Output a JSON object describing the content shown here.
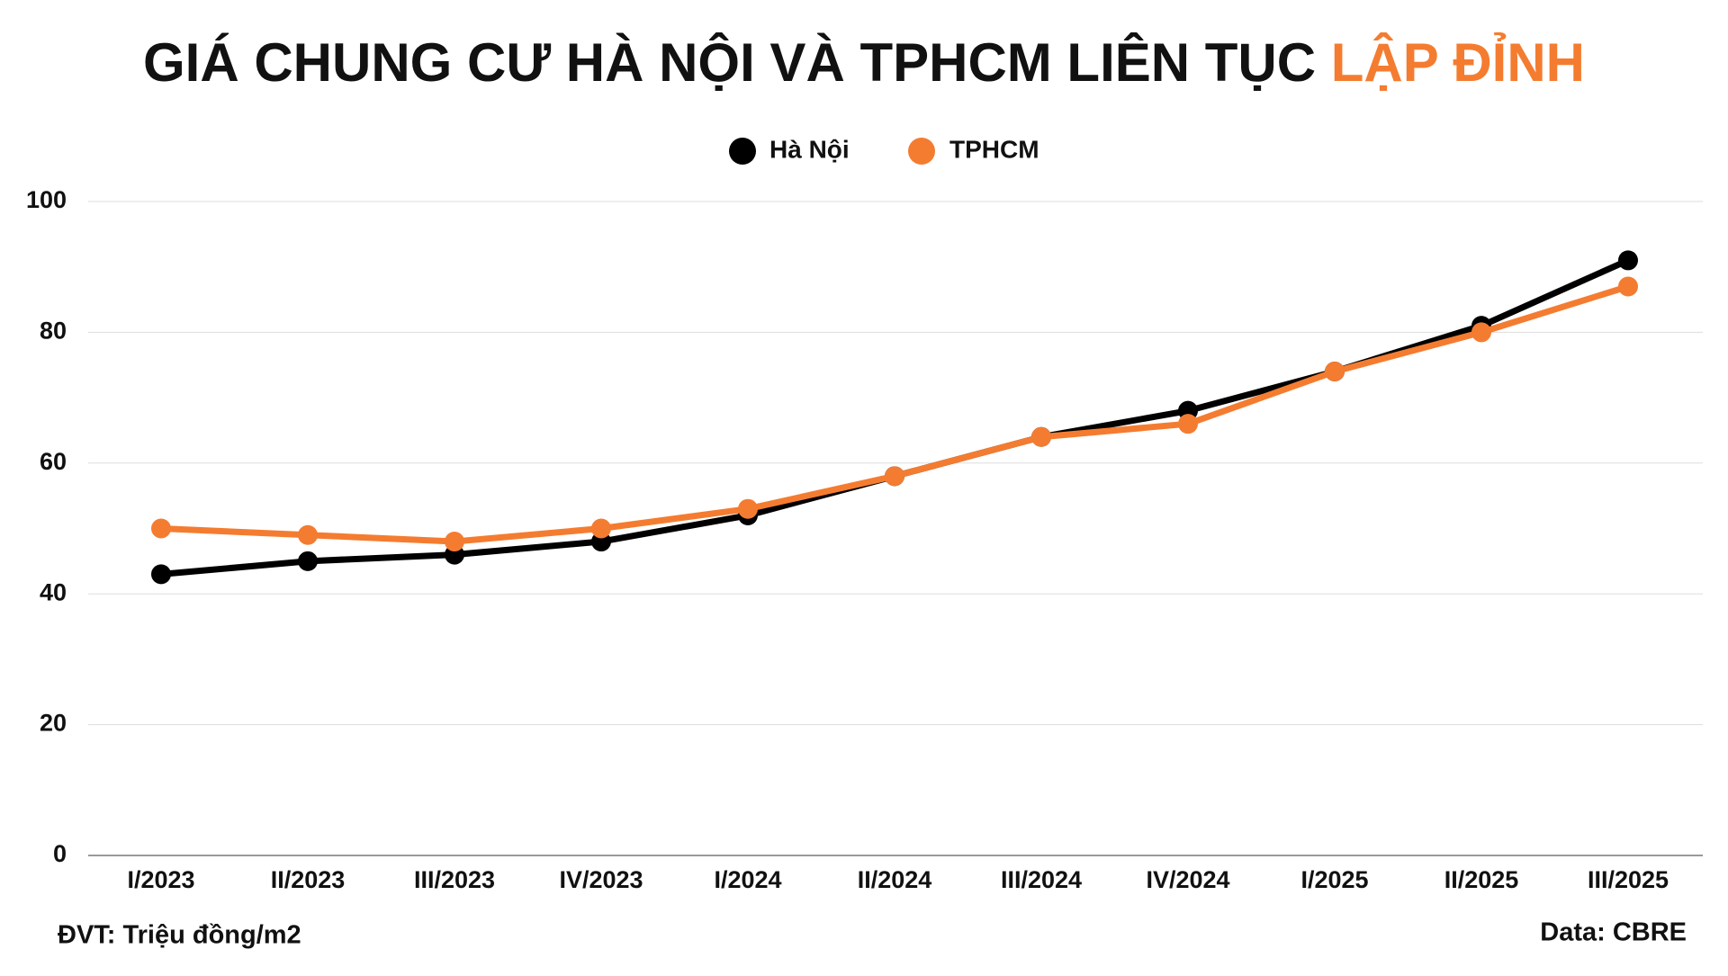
{
  "chart_data": {
    "type": "line",
    "title": "GIÁ CHUNG CƯ HÀ NỘI VÀ TPHCM LIÊN TỤC",
    "title_highlight": "LẬP ĐỈNH",
    "categories": [
      "I/2023",
      "II/2023",
      "III/2023",
      "IV/2023",
      "I/2024",
      "II/2024",
      "III/2024",
      "IV/2024",
      "I/2025",
      "II/2025",
      "III/2025"
    ],
    "series": [
      {
        "name": "Hà Nội",
        "color": "#000000",
        "values": [
          43,
          45,
          46,
          48,
          52,
          58,
          64,
          68,
          74,
          81,
          91
        ]
      },
      {
        "name": "TPHCM",
        "color": "#f47c30",
        "values": [
          50,
          49,
          48,
          50,
          53,
          58,
          64,
          66,
          74,
          80,
          87
        ]
      }
    ],
    "ylim": [
      0,
      100
    ],
    "yticks": [
      0,
      20,
      40,
      60,
      80,
      100
    ],
    "grid": true,
    "legend": "top",
    "unit_note": "ĐVT: Triệu đồng/m2",
    "source": "Data: CBRE"
  }
}
